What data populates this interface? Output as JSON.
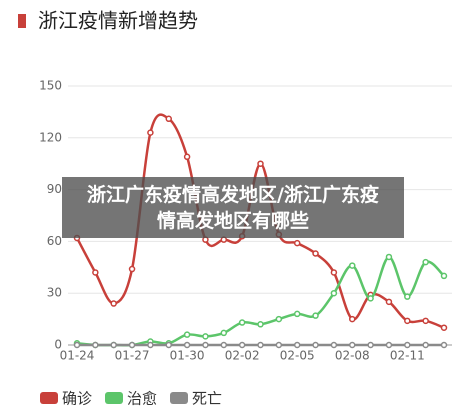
{
  "chart_data": {
    "type": "line",
    "title": "浙江疫情新增趋势",
    "categories": [
      "01-24",
      null,
      null,
      "01-27",
      null,
      null,
      "01-30",
      null,
      null,
      "02-02",
      null,
      null,
      "02-05",
      null,
      null,
      "02-08",
      null,
      null,
      "02-11",
      null,
      null
    ],
    "series": [
      {
        "name": "确诊",
        "color": "#c8403a",
        "values": [
          62,
          42,
          24,
          44,
          123,
          131,
          109,
          61,
          61,
          63,
          105,
          64,
          59,
          53,
          42,
          15,
          29,
          25,
          14,
          14,
          10
        ]
      },
      {
        "name": "治愈",
        "color": "#5cc56a",
        "values": [
          1,
          0,
          0,
          0,
          2,
          1,
          6,
          5,
          7,
          13,
          12,
          15,
          18,
          17,
          30,
          46,
          27,
          51,
          28,
          48,
          40
        ]
      },
      {
        "name": "死亡",
        "color": "#8a8a8a",
        "values": [
          0,
          0,
          0,
          0,
          0,
          0,
          0,
          0,
          0,
          0,
          0,
          0,
          0,
          0,
          0,
          0,
          0,
          0,
          0,
          0,
          0
        ]
      }
    ],
    "ylim": [
      0,
      150
    ],
    "yticks": [
      0,
      30,
      60,
      90,
      120,
      150
    ],
    "grid": true,
    "overlay": "浙江广东疫情高发地区/浙江广东疫情高发地区有哪些"
  }
}
